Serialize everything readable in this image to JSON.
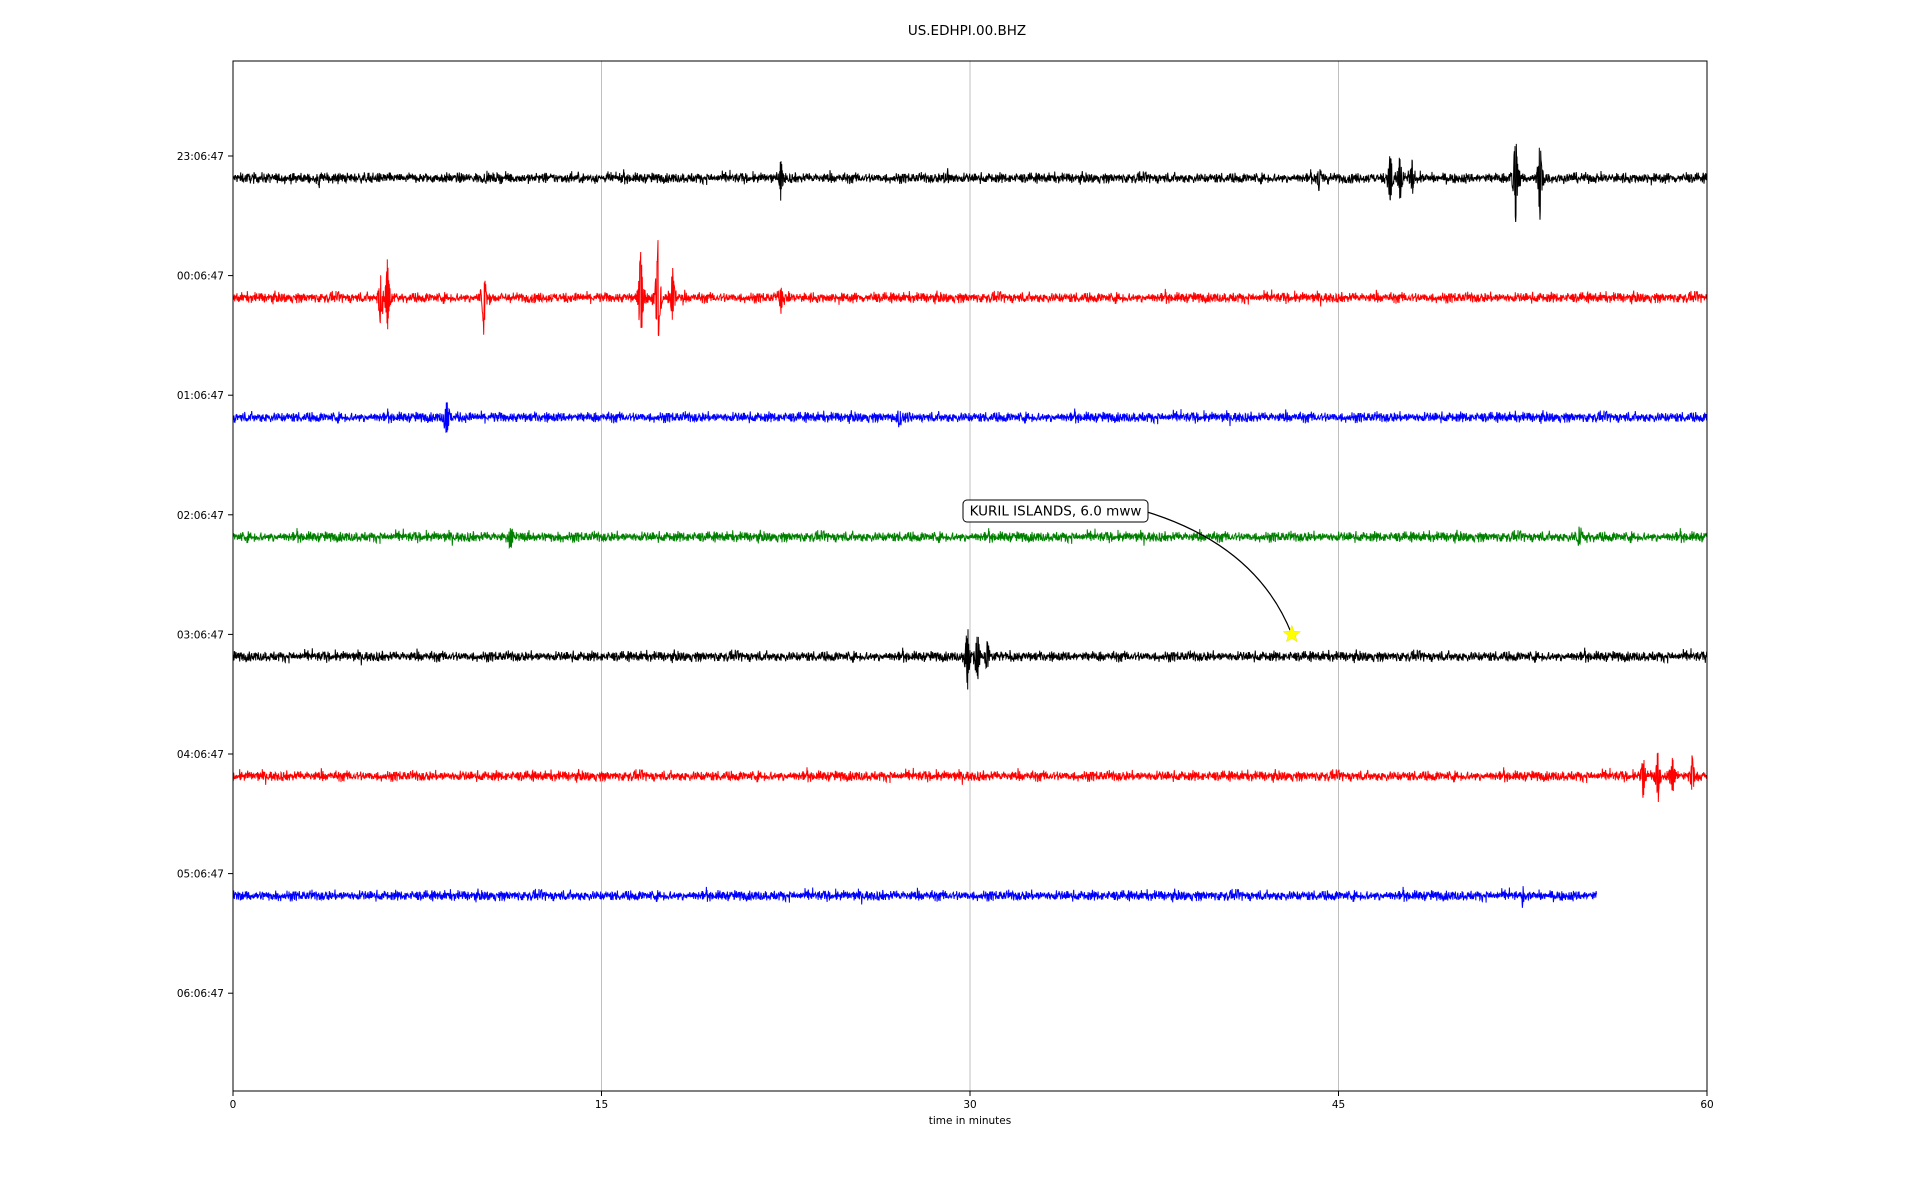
{
  "chart_data": {
    "type": "line",
    "title": "US.EDHPI.00.BHZ",
    "xlabel": "time in minutes",
    "ylabel": "",
    "xlim": [
      0,
      60
    ],
    "x_ticks": [
      0,
      15,
      30,
      45,
      60
    ],
    "x_tick_labels": [
      "0",
      "15",
      "30",
      "45",
      "60"
    ],
    "grid_x": true,
    "y_tick_labels": [
      "23:06:47",
      "00:06:47",
      "01:06:47",
      "02:06:47",
      "03:06:47",
      "04:06:47",
      "05:06:47",
      "06:06:47"
    ],
    "line_colors": [
      "#000000",
      "#ff0000",
      "#0000ff",
      "#008000"
    ],
    "traces": [
      {
        "row": 0,
        "start_min": 0,
        "end_min": 60,
        "color": "#000000",
        "noise": 0.11,
        "events": [
          {
            "t": 3.5,
            "amp": 0.15
          },
          {
            "t": 22.3,
            "amp": 0.27
          },
          {
            "t": 29.1,
            "amp": 0.12
          },
          {
            "t": 44.2,
            "amp": 0.22
          },
          {
            "t": 47.1,
            "amp": 0.45
          },
          {
            "t": 47.5,
            "amp": 0.35
          },
          {
            "t": 48.0,
            "amp": 0.3
          },
          {
            "t": 52.2,
            "amp": 0.7
          },
          {
            "t": 53.2,
            "amp": 0.6
          }
        ]
      },
      {
        "row": 1,
        "start_min": 0,
        "end_min": 60,
        "color": "#ff0000",
        "noise": 0.11,
        "events": [
          {
            "t": 6.0,
            "amp": 0.45
          },
          {
            "t": 6.3,
            "amp": 0.6
          },
          {
            "t": 10.2,
            "amp": 0.5
          },
          {
            "t": 16.6,
            "amp": 0.75
          },
          {
            "t": 17.3,
            "amp": 0.85
          },
          {
            "t": 17.9,
            "amp": 0.45
          },
          {
            "t": 22.3,
            "amp": 0.17
          }
        ]
      },
      {
        "row": 2,
        "start_min": 0,
        "end_min": 60,
        "color": "#0000ff",
        "noise": 0.11,
        "events": [
          {
            "t": 8.7,
            "amp": 0.3
          },
          {
            "t": 27.1,
            "amp": 0.15
          }
        ]
      },
      {
        "row": 3,
        "start_min": 0,
        "end_min": 60,
        "color": "#008000",
        "noise": 0.11,
        "events": [
          {
            "t": 11.3,
            "amp": 0.2
          },
          {
            "t": 54.8,
            "amp": 0.18
          }
        ]
      },
      {
        "row": 4,
        "start_min": 0,
        "end_min": 60,
        "color": "#000000",
        "noise": 0.11,
        "events": [
          {
            "t": 29.9,
            "amp": 0.45
          },
          {
            "t": 30.3,
            "amp": 0.35
          },
          {
            "t": 30.7,
            "amp": 0.25
          }
        ]
      },
      {
        "row": 5,
        "start_min": 0,
        "end_min": 60,
        "color": "#ff0000",
        "noise": 0.11,
        "events": [
          {
            "t": 57.4,
            "amp": 0.3
          },
          {
            "t": 58.0,
            "amp": 0.4
          },
          {
            "t": 58.6,
            "amp": 0.3
          },
          {
            "t": 59.4,
            "amp": 0.3
          }
        ]
      },
      {
        "row": 6,
        "start_min": 0,
        "end_min": 55.5,
        "color": "#0000ff",
        "noise": 0.11,
        "events": [
          {
            "t": 52.5,
            "amp": 0.18
          }
        ]
      }
    ],
    "annotation": {
      "text": "KURIL ISLANDS, 6.0 mww",
      "event_row": 4,
      "event_time_min": 43.1,
      "marker": "star",
      "marker_color": "#ffff00"
    }
  }
}
